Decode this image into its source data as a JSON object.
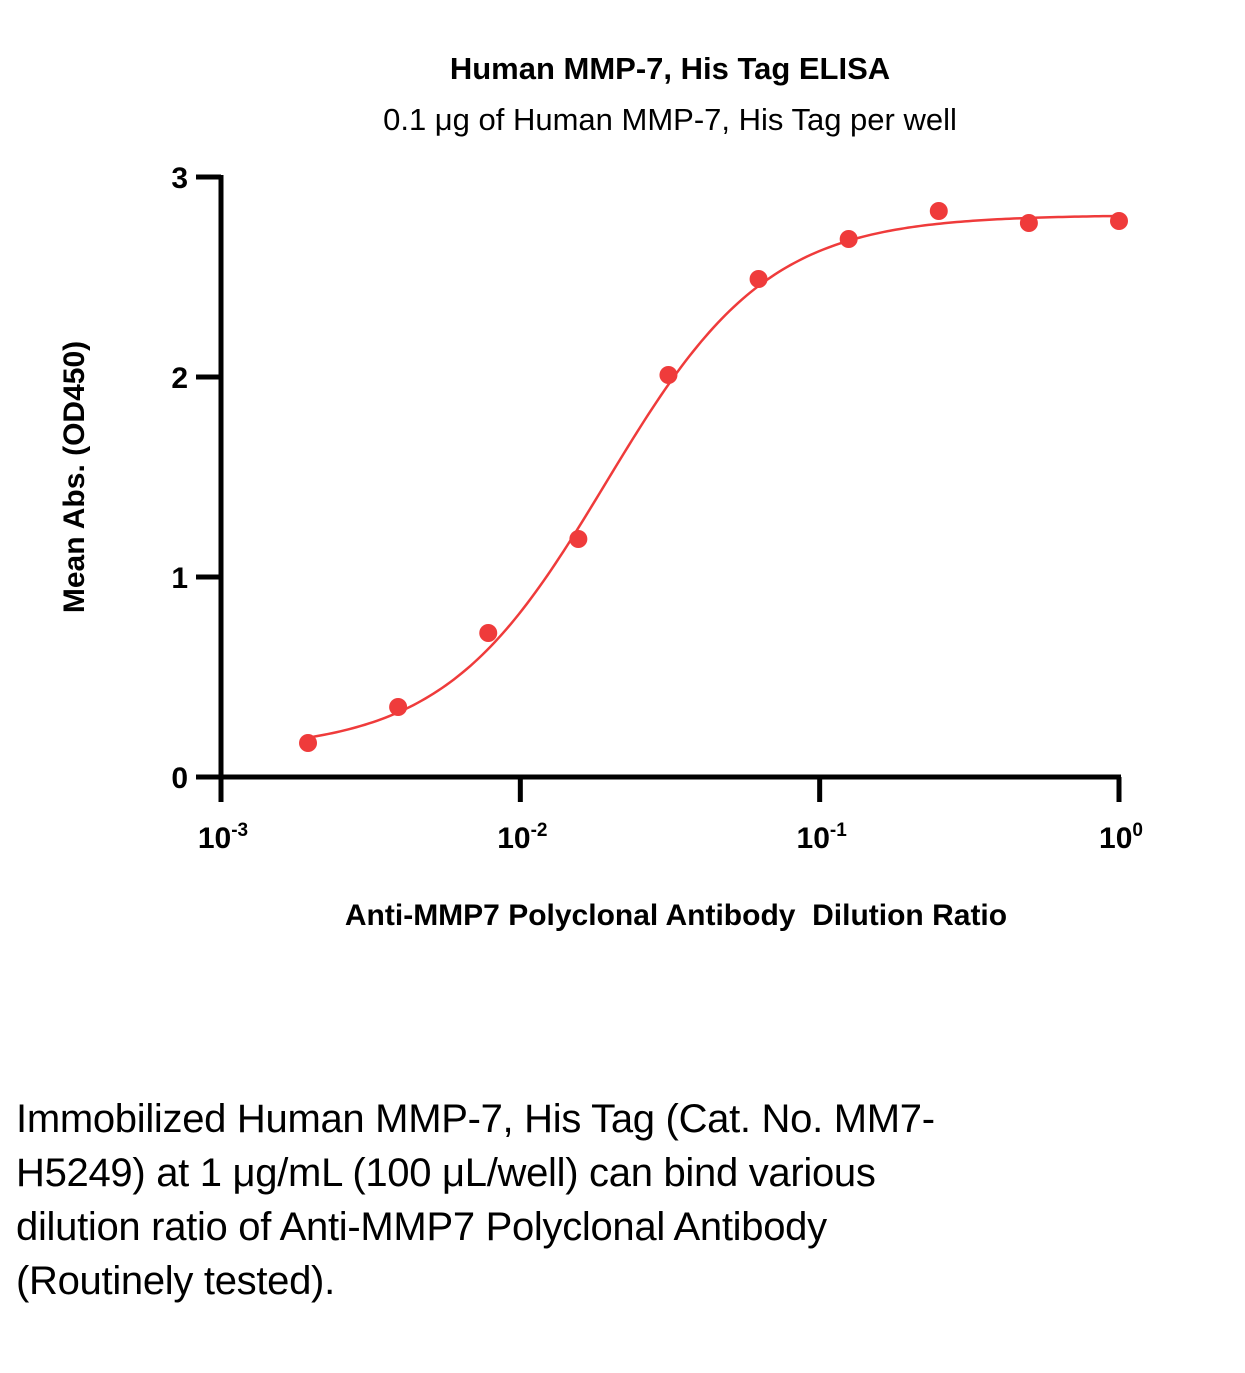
{
  "chart_data": {
    "type": "scatter",
    "title": "Human MMP-7, His Tag ELISA",
    "subtitle": "0.1 μg of Human MMP-7, His Tag per well",
    "xlabel": "Anti-MMP7 Polyclonal Antibody  Dilution Ratio",
    "ylabel": "Mean Abs. (OD450)",
    "xscale": "log",
    "xlim": [
      0.001,
      1
    ],
    "ylim": [
      0,
      3
    ],
    "x_ticks": [
      {
        "value": 0.001,
        "base": "10",
        "exp": "-3"
      },
      {
        "value": 0.01,
        "base": "10",
        "exp": "-2"
      },
      {
        "value": 0.1,
        "base": "10",
        "exp": "-1"
      },
      {
        "value": 1,
        "base": "10",
        "exp": "0"
      }
    ],
    "y_ticks": [
      {
        "value": 0,
        "label": "0"
      },
      {
        "value": 1,
        "label": "1"
      },
      {
        "value": 2,
        "label": "2"
      },
      {
        "value": 3,
        "label": "3"
      }
    ],
    "grid": false,
    "legend": "none",
    "series": [
      {
        "name": "Anti-MMP7 Polyclonal Antibody",
        "color": "#ef3b3b",
        "x": [
          0.001953,
          0.003906,
          0.007813,
          0.015625,
          0.03125,
          0.0625,
          0.125,
          0.25,
          0.5,
          1
        ],
        "y": [
          0.17,
          0.35,
          0.72,
          1.19,
          2.01,
          2.49,
          2.69,
          2.83,
          2.77,
          2.78
        ],
        "fit": {
          "model": "4PL",
          "bottom": 0.13,
          "top": 2.81,
          "ec50": 0.0193,
          "hill": 1.6
        }
      }
    ]
  },
  "caption": "Immobilized Human MMP-7, His Tag (Cat. No. MM7-H5249) at 1 μg/mL (100 μL/well) can bind various dilution ratio of Anti-MMP7 Polyclonal Antibody (Routinely tested).",
  "colors": {
    "series": "#ef3b3b",
    "axis": "#000000"
  }
}
